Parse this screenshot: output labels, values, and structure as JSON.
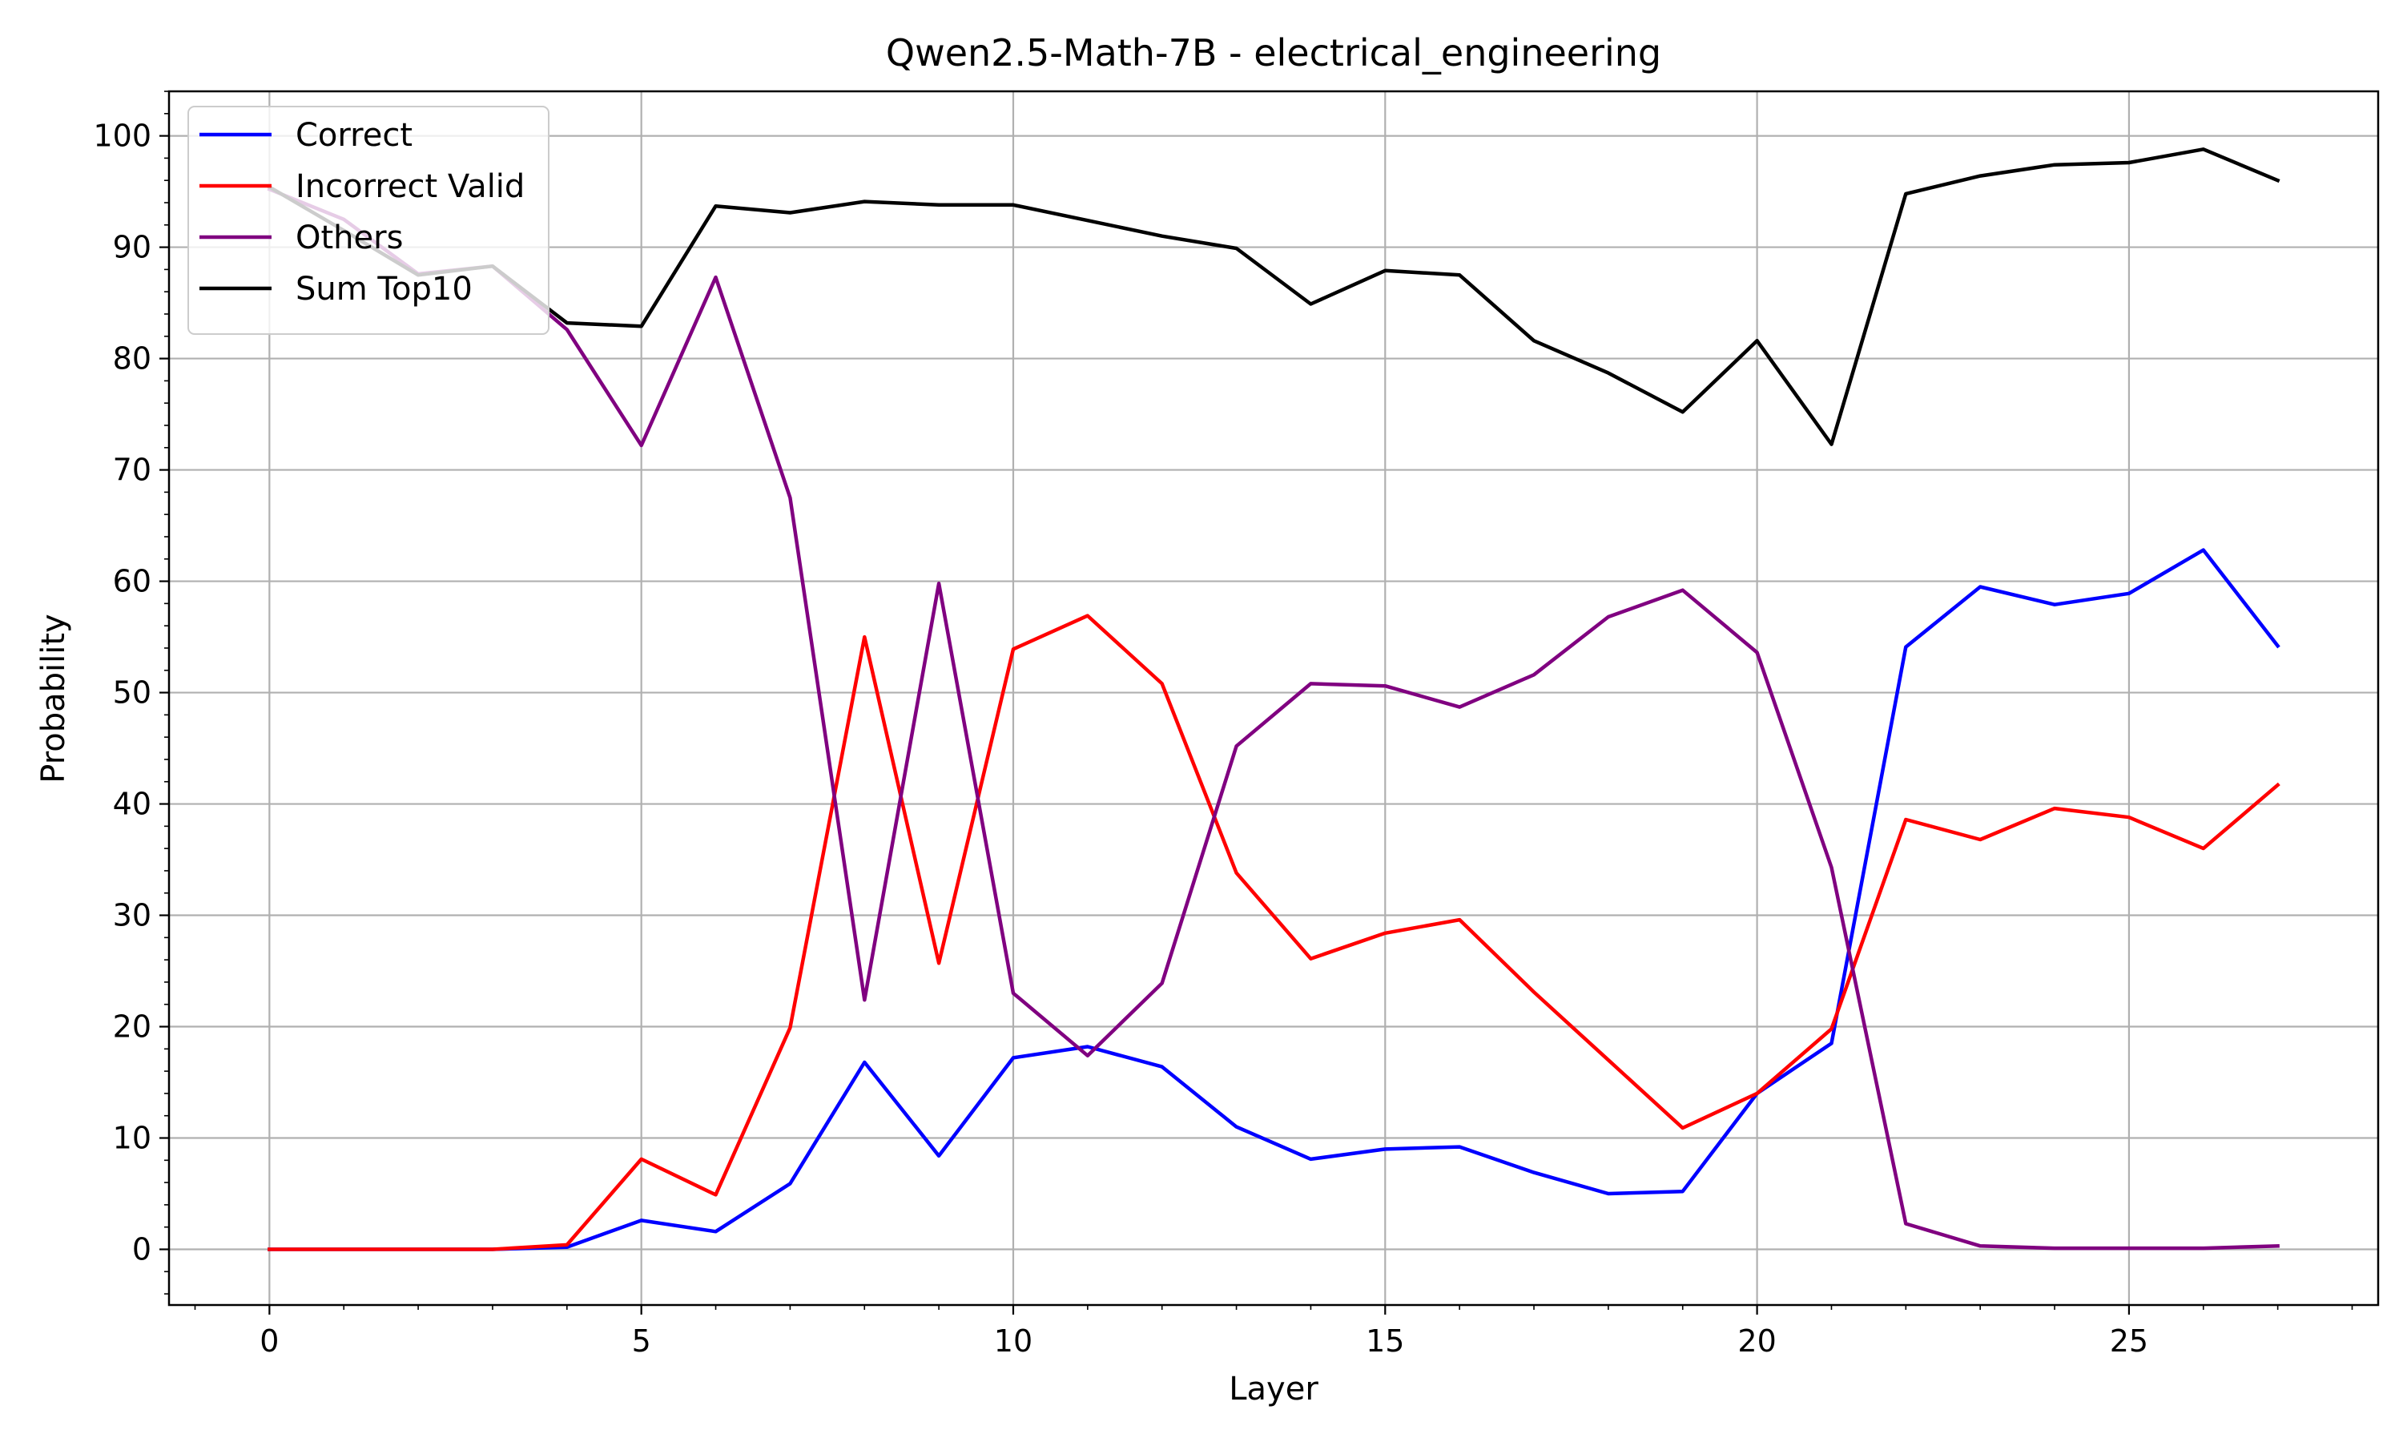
{
  "chart_data": {
    "type": "line",
    "title": "Qwen2.5-Math-7B - electrical_engineering",
    "xlabel": "Layer",
    "ylabel": "Probability",
    "xlim": [
      -1.35,
      28.35
    ],
    "ylim": [
      -5,
      104
    ],
    "xticks": [
      0,
      5,
      10,
      15,
      20,
      25
    ],
    "yticks": [
      0,
      10,
      20,
      30,
      40,
      50,
      60,
      70,
      80,
      90,
      100
    ],
    "grid": true,
    "legend_position": "top-left",
    "x": [
      0,
      1,
      2,
      3,
      4,
      5,
      6,
      7,
      8,
      9,
      10,
      11,
      12,
      13,
      14,
      15,
      16,
      17,
      18,
      19,
      20,
      21,
      22,
      23,
      24,
      25,
      26,
      27
    ],
    "series": [
      {
        "name": "Correct",
        "color": "#0000ff",
        "values": [
          0,
          0,
          0,
          0,
          0.2,
          2.6,
          1.6,
          5.9,
          16.8,
          8.4,
          17.2,
          18.2,
          16.4,
          11.0,
          8.1,
          9.0,
          9.2,
          6.9,
          5.0,
          5.2,
          14.0,
          18.5,
          54.1,
          59.5,
          57.9,
          58.9,
          62.8,
          54.2
        ]
      },
      {
        "name": "Incorrect Valid",
        "color": "#ff0000",
        "values": [
          0,
          0,
          0,
          0,
          0.4,
          8.1,
          4.9,
          19.9,
          55.0,
          25.7,
          53.9,
          56.9,
          50.8,
          33.8,
          26.1,
          28.4,
          29.6,
          23.1,
          17.0,
          10.9,
          14.0,
          19.8,
          38.6,
          36.8,
          39.6,
          38.8,
          36.0,
          41.7
        ]
      },
      {
        "name": "Others",
        "color": "#800080",
        "values": [
          95.2,
          92.5,
          87.6,
          88.3,
          82.6,
          72.2,
          87.3,
          67.5,
          22.4,
          59.8,
          23.0,
          17.4,
          23.9,
          45.2,
          50.8,
          50.6,
          48.7,
          51.6,
          56.8,
          59.2,
          53.6,
          34.3,
          2.3,
          0.3,
          0.1,
          0.1,
          0.1,
          0.3
        ]
      },
      {
        "name": "Sum Top10",
        "color": "#000000",
        "values": [
          95.4,
          91.5,
          87.5,
          88.3,
          83.2,
          82.9,
          93.7,
          93.1,
          94.1,
          93.8,
          93.8,
          92.4,
          91.0,
          89.9,
          84.9,
          87.9,
          87.5,
          81.6,
          78.7,
          75.2,
          81.6,
          72.3,
          94.8,
          96.4,
          97.4,
          97.6,
          98.8,
          96.0
        ]
      }
    ]
  }
}
